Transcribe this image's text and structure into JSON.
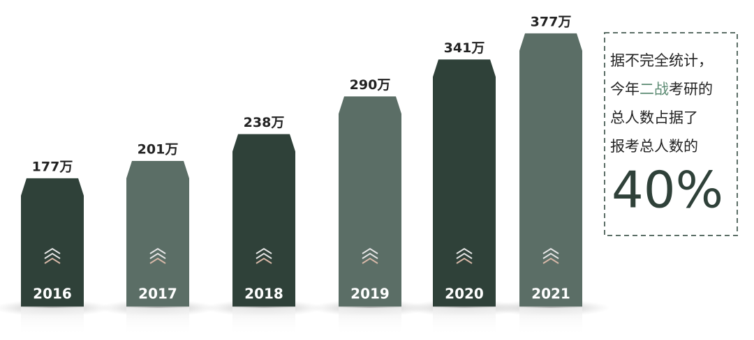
{
  "chart_data": {
    "type": "bar",
    "categories": [
      "2016",
      "2017",
      "2018",
      "2019",
      "2020",
      "2021"
    ],
    "values": [
      177,
      201,
      238,
      290,
      341,
      377
    ],
    "value_labels": [
      "177万",
      "201万",
      "238万",
      "290万",
      "341万",
      "377万"
    ],
    "colors": [
      "#2f4139",
      "#5b6e66",
      "#2f4139",
      "#5b6e66",
      "#2f4139",
      "#5b6e66"
    ],
    "annotation": {
      "lines": [
        [
          "据不完全统计，"
        ],
        [
          "今年",
          "二战",
          "考研的"
        ],
        [
          "总人数占据了"
        ],
        [
          "报考总人数的"
        ]
      ],
      "highlight_color": "#5b8a72",
      "big": "40%"
    }
  }
}
